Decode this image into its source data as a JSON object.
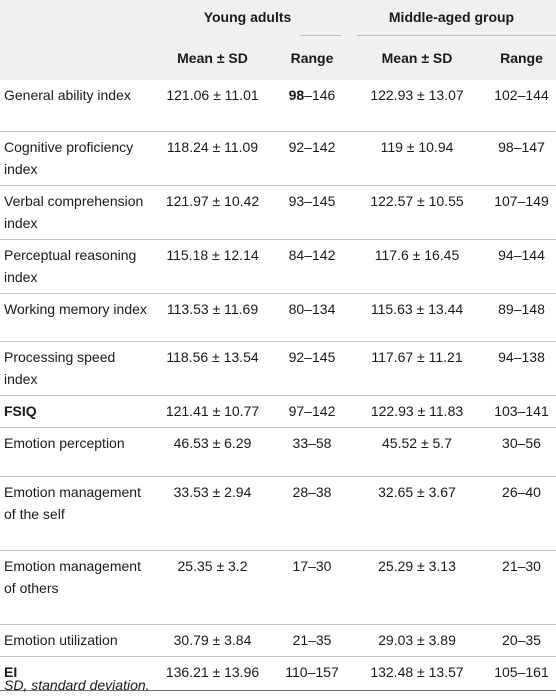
{
  "headers": {
    "group1": "Young adults",
    "group2": "Middle-aged group",
    "col1": "Mean ± SD",
    "col2": "Range",
    "col3": "Mean ± SD",
    "col4": "Range"
  },
  "rows": [
    {
      "label": "General ability index",
      "m1": "121.06 ± 11.01",
      "r1_bold": "98",
      "r1_rest": "–146",
      "m2": "122.93 ± 13.07",
      "r2": "102–144"
    },
    {
      "label": "Cognitive proficiency index",
      "m1": "118.24 ± 11.09",
      "r1": "92–142",
      "m2": "119 ± 10.94",
      "r2": "98–147"
    },
    {
      "label": "Verbal comprehension index",
      "m1": "121.97 ± 10.42",
      "r1": "93–145",
      "m2": "122.57 ± 10.55",
      "r2": "107–149"
    },
    {
      "label": "Perceptual reasoning index",
      "m1": "115.18 ± 12.14",
      "r1": "84–142",
      "m2": "117.6 ± 16.45",
      "r2": "94–144"
    },
    {
      "label": "Working memory index",
      "m1": "113.53 ± 11.69",
      "r1": "80–134",
      "m2": "115.63 ± 13.44",
      "r2": "89–148"
    },
    {
      "label": "Processing speed index",
      "m1": "118.56 ± 13.54",
      "r1": "92–145",
      "m2": "117.67 ± 11.21",
      "r2": "94–138"
    },
    {
      "label": "FSIQ",
      "m1": "121.41 ± 10.77",
      "r1": "97–142",
      "m2": "122.93 ± 11.83",
      "r2": "103–141"
    },
    {
      "label": "Emotion perception",
      "m1": "46.53 ± 6.29",
      "r1": "33–58",
      "m2": "45.52 ± 5.7",
      "r2": "30–56"
    },
    {
      "label": "Emotion management of the self",
      "m1": "33.53 ± 2.94",
      "r1": "28–38",
      "m2": "32.65 ± 3.67",
      "r2": "26–40"
    },
    {
      "label": "Emotion management of others",
      "m1": "25.35 ± 3.2",
      "r1": "17–30",
      "m2": "25.29 ± 3.13",
      "r2": "21–30"
    },
    {
      "label": "Emotion utilization",
      "m1": "30.79 ± 3.84",
      "r1": "21–35",
      "m2": "29.03 ± 3.89",
      "r2": "20–35"
    },
    {
      "label": "EI",
      "m1": "136.21 ± 13.96",
      "r1": "110–157",
      "m2": "132.48 ± 13.57",
      "r2": "105–161"
    }
  ],
  "footnote": "SD, standard deviation."
}
